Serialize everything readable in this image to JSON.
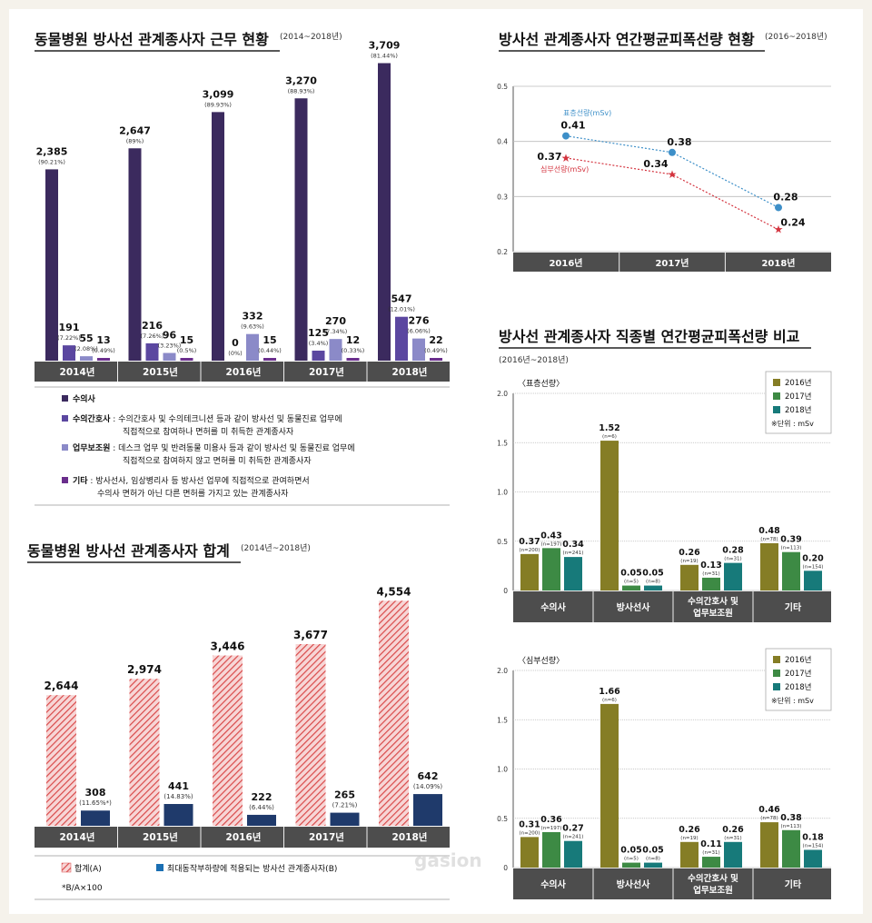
{
  "palette": {
    "vet": "#3b2a5e",
    "nurse": "#5b47a0",
    "assistant": "#8b8ac8",
    "other": "#6a2e8c",
    "total": "#d94a4a",
    "maxload": "#1f3a6b",
    "std16": "#857d25",
    "std17": "#3d8a44",
    "std18": "#177a7a",
    "axisbar": "#4d4d4d",
    "surf": "#3d8fc8",
    "deep": "#d4343f"
  },
  "chart1": {
    "title": "동물병원 방사선 관계종사자 근무 현황",
    "subtitle": "(2014~2018년)",
    "legend": [
      {
        "key": "vet",
        "label": "수의사",
        "desc1": "",
        "desc2": ""
      },
      {
        "key": "nurse",
        "label": "수의간호사",
        "desc1": " : 수의간호사 및 수의테크니션 등과 같이 방사선 및 동물진료 업무에",
        "desc2": "직접적으로 참여하나 면허를 미 취득한 관계종사자"
      },
      {
        "key": "assistant",
        "label": "업무보조원",
        "desc1": " : 데스크 업무 및 반려동물 미용사 등과 같이 방사선 및 동물진료 업무에",
        "desc2": "직접적으로 참여하지 않고 면허를 미 취득한 관계종사자"
      },
      {
        "key": "other",
        "label": "기타",
        "desc1": " : 방사선사, 임상병리사 등 방사선 업무에 직접적으로 관여하면서",
        "desc2": "수의사 면허가 아닌 다른 면허를 가지고 있는 관계종사자"
      }
    ]
  },
  "chart2": {
    "title": "동물병원 방사선 관계종사자 합계",
    "subtitle": "(2014년~2018년)",
    "legend_total": "합계(A)",
    "legend_max": "최대동작부하량에 적용되는 방사선 관계종사자(B)",
    "note": "*B/A×100"
  },
  "chart3": {
    "title": "방사선 관계종사자 연간평균피폭선량 현황",
    "subtitle": "(2016~2018년)",
    "label_surface": "표층선량(mSv)",
    "label_deep": "심부선량(mSv)"
  },
  "chart4": {
    "title": "방사선 관계종사자 직종별 연간평균피폭선량 비교",
    "subtitle": "(2016년~2018년)",
    "panel_std": "〈표층선량〉",
    "panel_deep": "〈심부선량〉",
    "unit": "※단위 : mSv",
    "years": [
      "2016년",
      "2017년",
      "2018년"
    ]
  },
  "watermark": "gasion",
  "chart_data": [
    {
      "type": "bar",
      "title": "동물병원 방사선 관계종사자 근무 현황",
      "categories": [
        "2014년",
        "2015년",
        "2016년",
        "2017년",
        "2018년"
      ],
      "series": [
        {
          "name": "수의사",
          "values": [
            2385,
            2647,
            3099,
            3270,
            3709
          ],
          "labels": [
            "2,385",
            "2,647",
            "3,099",
            "3,270",
            "3,709"
          ],
          "pct": [
            "(90.21%)",
            "(89%)",
            "(89.93%)",
            "(88.93%)",
            "(81.44%)"
          ]
        },
        {
          "name": "수의간호사",
          "values": [
            191,
            216,
            0,
            125,
            547
          ],
          "labels": [
            "191",
            "216",
            "0",
            "125",
            "547"
          ],
          "pct": [
            "(7.22%)",
            "(7.26%)",
            "(0%)",
            "(3.4%)",
            "(12.01%)"
          ]
        },
        {
          "name": "업무보조원",
          "values": [
            55,
            96,
            332,
            270,
            276
          ],
          "labels": [
            "55",
            "96",
            "332",
            "270",
            "276"
          ],
          "pct": [
            "(2.08%)",
            "(3.23%)",
            "(9.63%)",
            "(7.34%)",
            "(6.06%)"
          ]
        },
        {
          "name": "기타",
          "values": [
            13,
            15,
            15,
            12,
            22
          ],
          "labels": [
            "13",
            "15",
            "15",
            "12",
            "22"
          ],
          "pct": [
            "(0.49%)",
            "(0.5%)",
            "(0.44%)",
            "(0.33%)",
            "(0.49%)"
          ]
        }
      ]
    },
    {
      "type": "bar",
      "title": "동물병원 방사선 관계종사자 합계",
      "categories": [
        "2014년",
        "2015년",
        "2016년",
        "2017년",
        "2018년"
      ],
      "series": [
        {
          "name": "합계(A)",
          "values": [
            2644,
            2974,
            3446,
            3677,
            4554
          ],
          "labels": [
            "2,644",
            "2,974",
            "3,446",
            "3,677",
            "4,554"
          ]
        },
        {
          "name": "최대동작부하량에 적용되는 방사선 관계종사자(B)",
          "values": [
            308,
            441,
            222,
            265,
            642
          ],
          "labels": [
            "308",
            "441",
            "222",
            "265",
            "642"
          ],
          "pct": [
            "(11.65%*)",
            "(14.83%)",
            "(6.44%)",
            "(7.21%)",
            "(14.09%)"
          ]
        }
      ]
    },
    {
      "type": "line",
      "title": "방사선 관계종사자 연간평균피폭선량 현황",
      "x": [
        "2016년",
        "2017년",
        "2018년"
      ],
      "ylim": [
        0.2,
        0.5
      ],
      "yticks": [
        "0.2",
        "0.3",
        "0.4",
        "0.5"
      ],
      "series": [
        {
          "name": "표층선량(mSv)",
          "values": [
            0.41,
            0.38,
            0.28
          ],
          "labels": [
            "0.41",
            "0.38",
            "0.28"
          ]
        },
        {
          "name": "심부선량(mSv)",
          "values": [
            0.37,
            0.34,
            0.24
          ],
          "labels": [
            "0.37",
            "0.34",
            "0.24"
          ]
        }
      ]
    },
    {
      "type": "bar",
      "title": "〈표층선량〉",
      "categories": [
        "수의사",
        "방사선사",
        "수의간호사 및|업무보조원",
        "기타"
      ],
      "ylim": [
        0,
        2.0
      ],
      "yticks": [
        "0",
        "0.5",
        "1.0",
        "1.5",
        "2.0"
      ],
      "series": [
        {
          "name": "2016년",
          "values": [
            0.37,
            1.52,
            0.26,
            0.48
          ],
          "labels": [
            "0.37",
            "1.52",
            "0.26",
            "0.48"
          ],
          "n": [
            "(n=200)",
            "(n=6)",
            "(n=19)",
            "(n=78)"
          ]
        },
        {
          "name": "2017년",
          "values": [
            0.43,
            0.05,
            0.13,
            0.39
          ],
          "labels": [
            "0.43",
            "0.05",
            "0.13",
            "0.39"
          ],
          "n": [
            "(n=197)",
            "(n=5)",
            "(n=31)",
            "(n=113)"
          ]
        },
        {
          "name": "2018년",
          "values": [
            0.34,
            0.05,
            0.28,
            0.2
          ],
          "labels": [
            "0.34",
            "0.05",
            "0.28",
            "0.20"
          ],
          "n": [
            "(n=241)",
            "(n=8)",
            "(n=31)",
            "(n=154)"
          ]
        }
      ]
    },
    {
      "type": "bar",
      "title": "〈심부선량〉",
      "categories": [
        "수의사",
        "방사선사",
        "수의간호사 및|업무보조원",
        "기타"
      ],
      "ylim": [
        0,
        2.0
      ],
      "yticks": [
        "0",
        "0.5",
        "1.0",
        "1.5",
        "2.0"
      ],
      "series": [
        {
          "name": "2016년",
          "values": [
            0.31,
            1.66,
            0.26,
            0.46
          ],
          "labels": [
            "0.31",
            "1.66",
            "0.26",
            "0.46"
          ],
          "n": [
            "(n=200)",
            "(n=6)",
            "(n=19)",
            "(n=78)"
          ]
        },
        {
          "name": "2017년",
          "values": [
            0.36,
            0.05,
            0.11,
            0.38
          ],
          "labels": [
            "0.36",
            "0.05",
            "0.11",
            "0.38"
          ],
          "n": [
            "(n=197)",
            "(n=5)",
            "(n=31)",
            "(n=113)"
          ]
        },
        {
          "name": "2018년",
          "values": [
            0.27,
            0.05,
            0.26,
            0.18
          ],
          "labels": [
            "0.27",
            "0.05",
            "0.26",
            "0.18"
          ],
          "n": [
            "(n=241)",
            "(n=8)",
            "(n=31)",
            "(n=154)"
          ]
        }
      ]
    }
  ]
}
